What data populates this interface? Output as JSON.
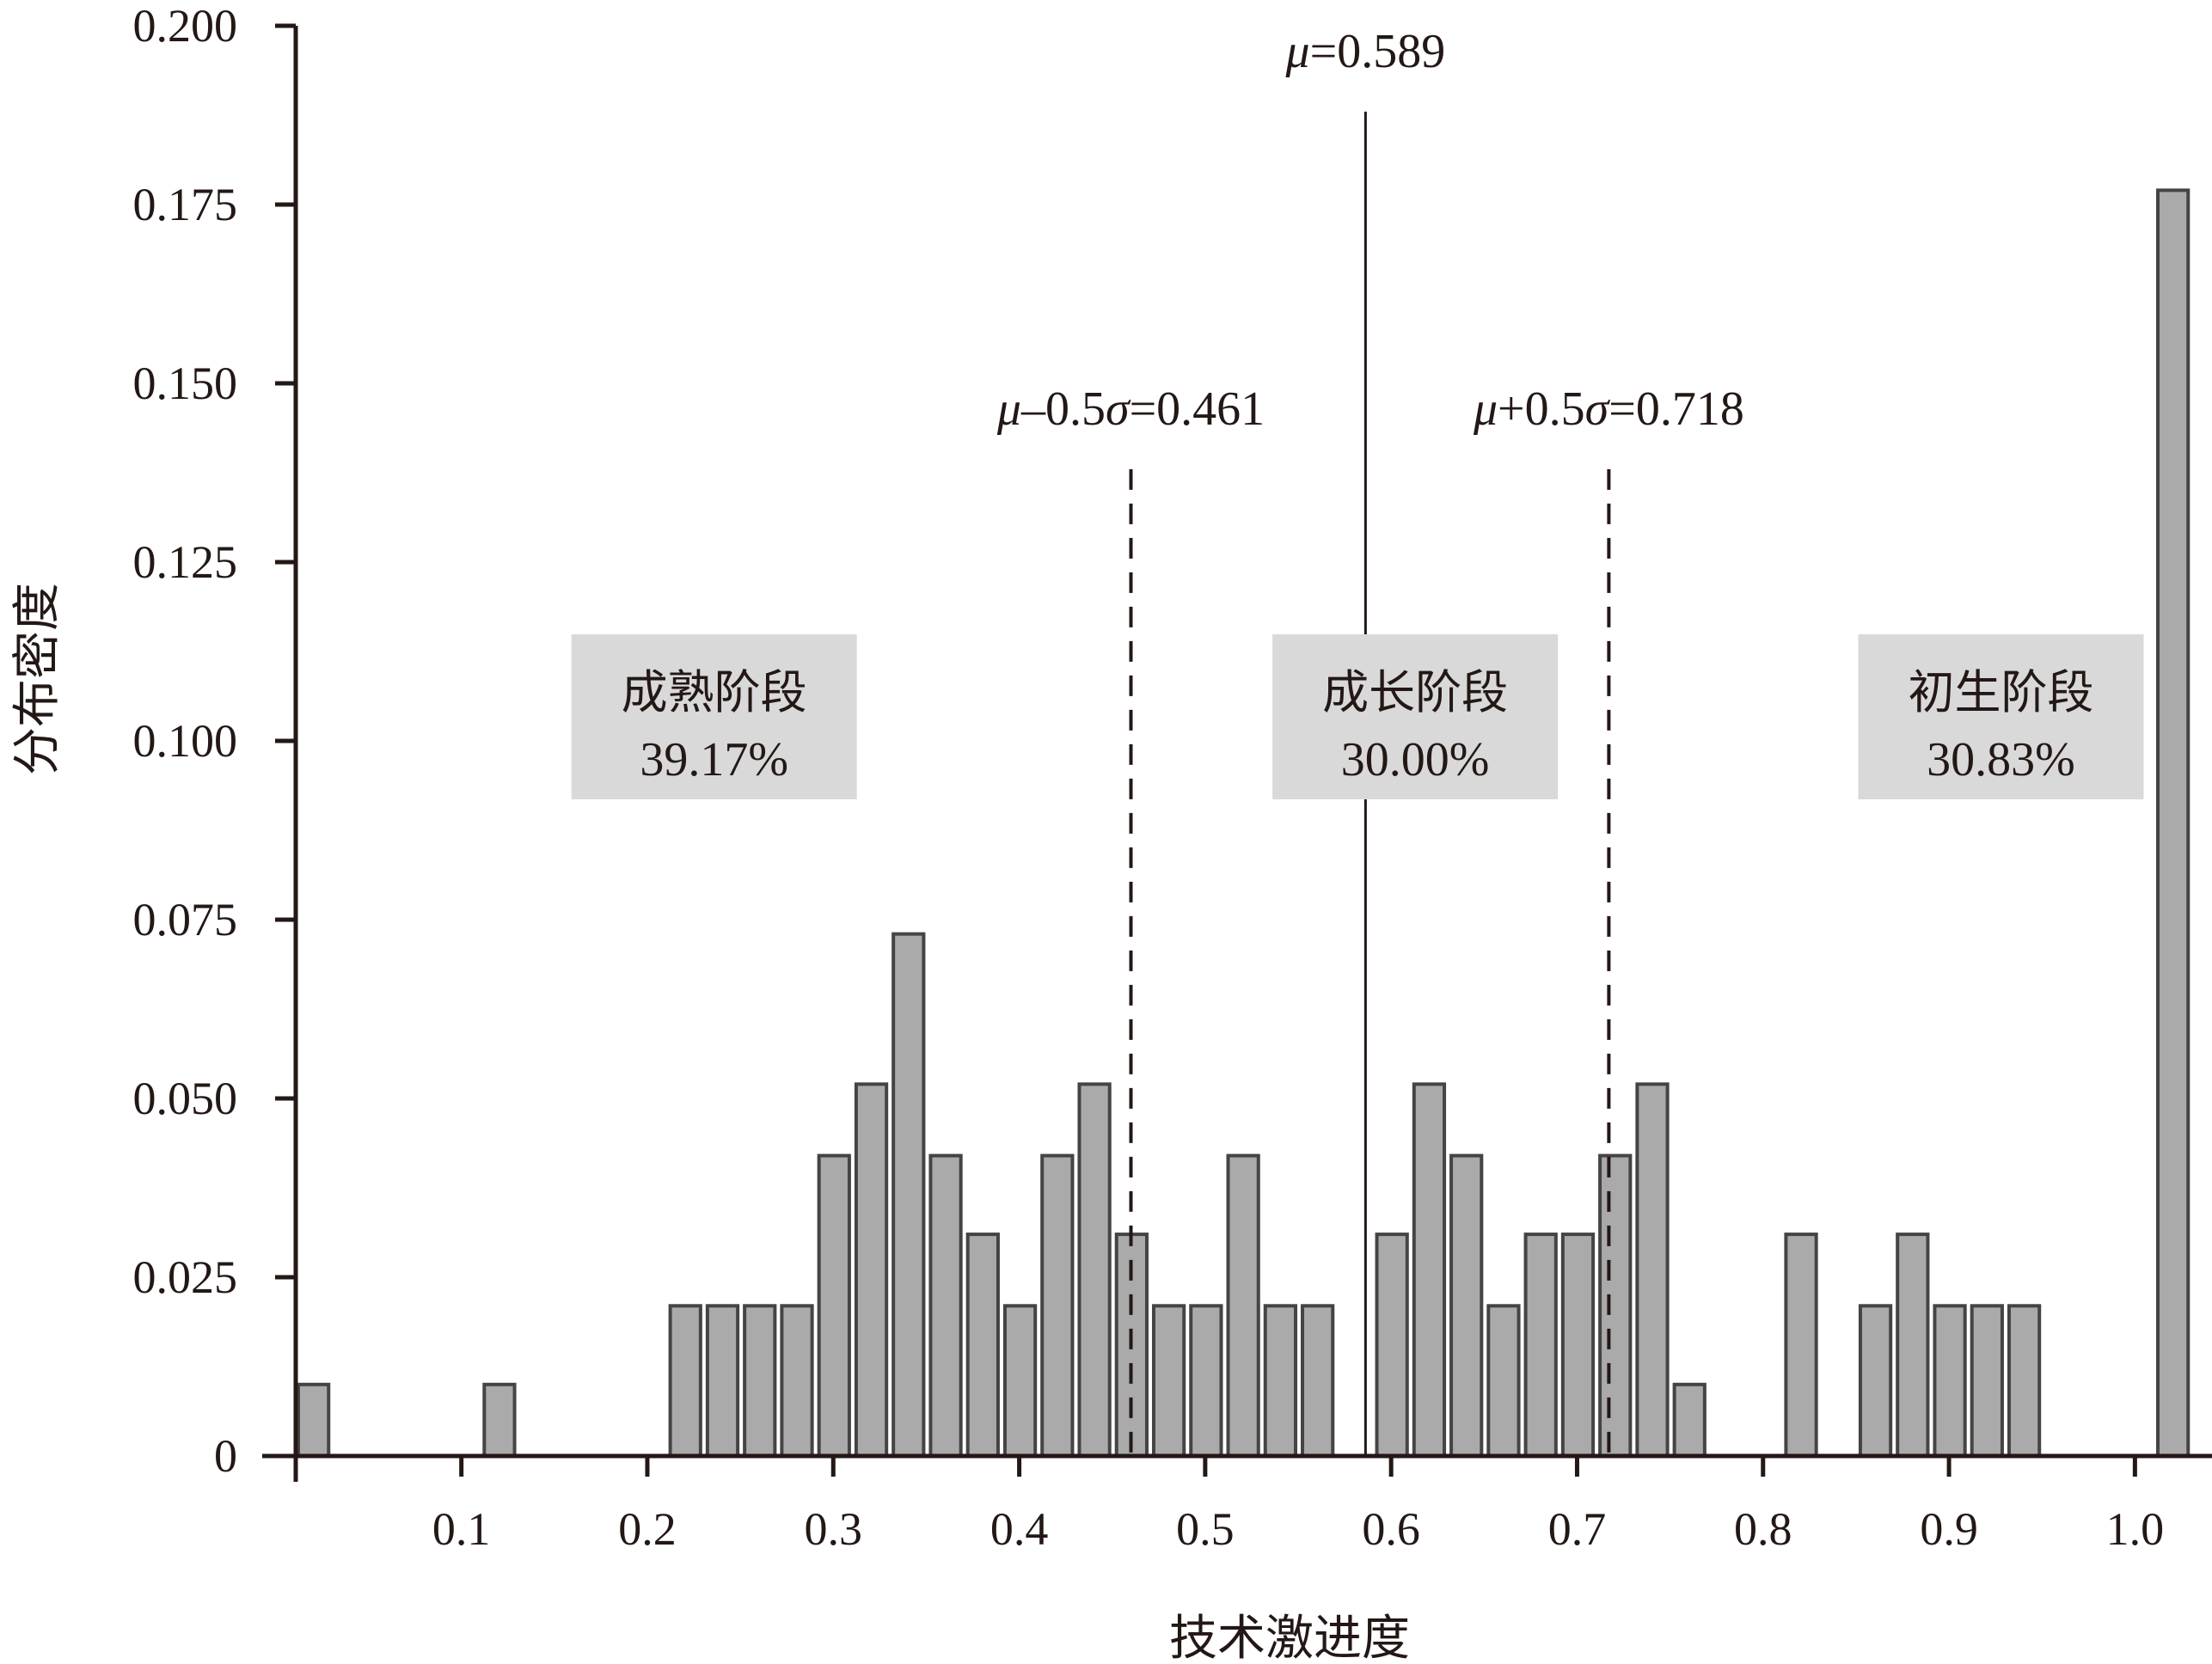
{
  "chart_data": {
    "type": "bar",
    "title": "",
    "xlabel": "技术激进度",
    "ylabel": "分布密度",
    "xlim": [
      0.01,
      1.04
    ],
    "ylim": [
      0,
      0.2
    ],
    "grid": false,
    "bin_width": 0.02,
    "x_ticks": [
      0.1,
      0.2,
      0.3,
      0.4,
      0.5,
      0.6,
      0.7,
      0.8,
      0.9,
      1.0
    ],
    "x_tick_labels": [
      "0.1",
      "0.2",
      "0.3",
      "0.4",
      "0.5",
      "0.6",
      "0.7",
      "0.8",
      "0.9",
      "1.0"
    ],
    "y_ticks": [
      0,
      0.025,
      0.05,
      0.075,
      0.1,
      0.125,
      0.15,
      0.175,
      0.2
    ],
    "y_tick_labels": [
      "0",
      "0.025",
      "0.050",
      "0.075",
      "0.100",
      "0.125",
      "0.150",
      "0.175",
      "0.200"
    ],
    "bins": [
      {
        "x0": 0.01,
        "x1": 0.03,
        "value": 0.01
      },
      {
        "x0": 0.11,
        "x1": 0.13,
        "value": 0.01
      },
      {
        "x0": 0.21,
        "x1": 0.23,
        "value": 0.021
      },
      {
        "x0": 0.23,
        "x1": 0.25,
        "value": 0.021
      },
      {
        "x0": 0.25,
        "x1": 0.27,
        "value": 0.021
      },
      {
        "x0": 0.27,
        "x1": 0.29,
        "value": 0.021
      },
      {
        "x0": 0.29,
        "x1": 0.31,
        "value": 0.042
      },
      {
        "x0": 0.31,
        "x1": 0.33,
        "value": 0.052
      },
      {
        "x0": 0.33,
        "x1": 0.35,
        "value": 0.073
      },
      {
        "x0": 0.35,
        "x1": 0.37,
        "value": 0.042
      },
      {
        "x0": 0.37,
        "x1": 0.39,
        "value": 0.031
      },
      {
        "x0": 0.39,
        "x1": 0.41,
        "value": 0.021
      },
      {
        "x0": 0.41,
        "x1": 0.43,
        "value": 0.042
      },
      {
        "x0": 0.43,
        "x1": 0.45,
        "value": 0.052
      },
      {
        "x0": 0.45,
        "x1": 0.47,
        "value": 0.031
      },
      {
        "x0": 0.47,
        "x1": 0.49,
        "value": 0.021
      },
      {
        "x0": 0.49,
        "x1": 0.51,
        "value": 0.021
      },
      {
        "x0": 0.51,
        "x1": 0.53,
        "value": 0.042
      },
      {
        "x0": 0.53,
        "x1": 0.55,
        "value": 0.021
      },
      {
        "x0": 0.55,
        "x1": 0.57,
        "value": 0.021
      },
      {
        "x0": 0.59,
        "x1": 0.61,
        "value": 0.031
      },
      {
        "x0": 0.61,
        "x1": 0.63,
        "value": 0.052
      },
      {
        "x0": 0.63,
        "x1": 0.65,
        "value": 0.042
      },
      {
        "x0": 0.65,
        "x1": 0.67,
        "value": 0.021
      },
      {
        "x0": 0.67,
        "x1": 0.69,
        "value": 0.031
      },
      {
        "x0": 0.69,
        "x1": 0.71,
        "value": 0.031
      },
      {
        "x0": 0.71,
        "x1": 0.73,
        "value": 0.042
      },
      {
        "x0": 0.73,
        "x1": 0.75,
        "value": 0.052
      },
      {
        "x0": 0.75,
        "x1": 0.77,
        "value": 0.01
      },
      {
        "x0": 0.81,
        "x1": 0.83,
        "value": 0.031
      },
      {
        "x0": 0.85,
        "x1": 0.87,
        "value": 0.021
      },
      {
        "x0": 0.87,
        "x1": 0.89,
        "value": 0.031
      },
      {
        "x0": 0.89,
        "x1": 0.91,
        "value": 0.021
      },
      {
        "x0": 0.91,
        "x1": 0.93,
        "value": 0.021
      },
      {
        "x0": 0.93,
        "x1": 0.95,
        "value": 0.021
      },
      {
        "x0": 1.01,
        "x1": 1.03,
        "value": 0.177
      }
    ],
    "reference_lines": [
      {
        "name": "mean",
        "x": 0.589,
        "style": "solid",
        "label_symbol": "μ",
        "label_rest": "=0.589",
        "top_value": 0.188
      },
      {
        "name": "mean-minus-half-sigma",
        "x": 0.461,
        "style": "dashed",
        "label_symbol": "μ",
        "label_mid": "–0.5",
        "label_sigma": "σ",
        "label_rest": "=0.461",
        "top_value": 0.138
      },
      {
        "name": "mean-plus-half-sigma",
        "x": 0.718,
        "style": "dashed",
        "label_symbol": "μ",
        "label_mid": "+0.5",
        "label_sigma": "σ",
        "label_rest": "=0.718",
        "top_value": 0.138
      }
    ],
    "annotations": [
      {
        "name": "stage-mature",
        "title": "成熟阶段",
        "percent": "39.17%",
        "x_center": 0.235,
        "y_center": 0.1
      },
      {
        "name": "stage-growth",
        "title": "成长阶段",
        "percent": "30.00%",
        "x_center": 0.612,
        "y_center": 0.1
      },
      {
        "name": "stage-emerging",
        "title": "初生阶段",
        "percent": "30.83%",
        "x_center": 0.927,
        "y_center": 0.1
      }
    ]
  }
}
